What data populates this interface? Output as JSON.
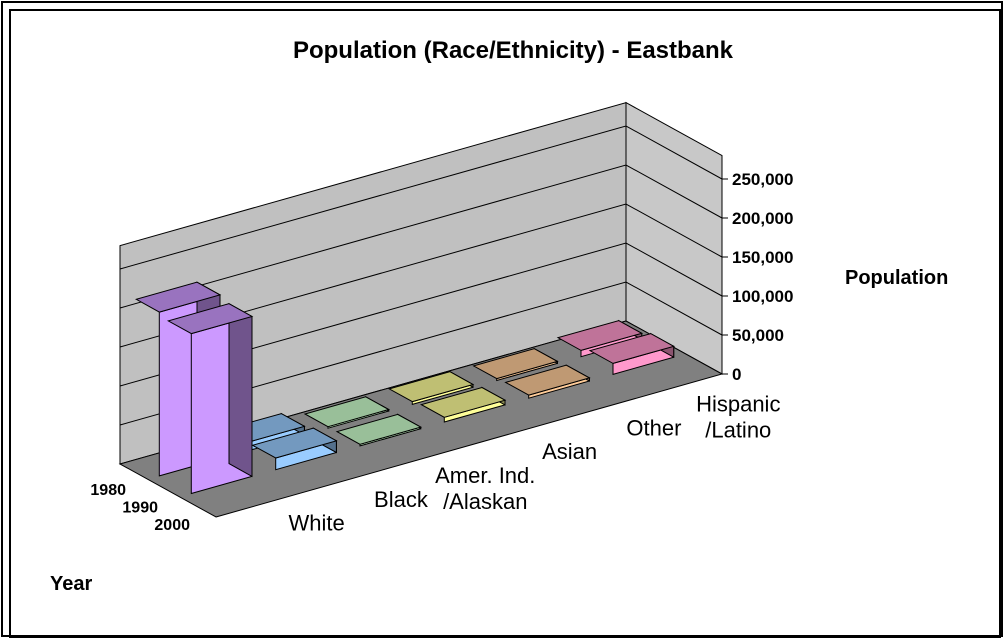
{
  "chart_data": {
    "type": "bar",
    "subtype": "3d-column",
    "title": "Population (Race/Ethnicity) - Eastbank",
    "xlabel": "",
    "ylabel": "Population",
    "depth_label": "Year",
    "categories": [
      "White",
      "Black",
      "Amer. Ind. /Alaskan",
      "Asian",
      "Other",
      "Hispanic /Latino"
    ],
    "category_lines": [
      [
        "White"
      ],
      [
        "Black"
      ],
      [
        "Amer. Ind.",
        "/Alaskan"
      ],
      [
        "Asian"
      ],
      [
        "Other"
      ],
      [
        "Hispanic",
        "/Latino"
      ]
    ],
    "years": [
      "1980",
      "1990",
      "2000"
    ],
    "series": [
      {
        "name": "1980",
        "values": [
          210000,
          11000,
          1500,
          3500,
          2500,
          8000
        ]
      },
      {
        "name": "1990",
        "values": [
          205000,
          15000,
          2000,
          6000,
          4000,
          14000
        ]
      },
      {
        "name": "2000",
        "values": [
          0,
          0,
          0,
          0,
          0,
          0
        ]
      }
    ],
    "y_ticks": [
      "0",
      "50,000",
      "100,000",
      "150,000",
      "200,000",
      "250,000"
    ],
    "ylim": [
      0,
      250000
    ],
    "colors": {
      "White": "#cc99ff",
      "Black": "#99ccff",
      "Amer. Ind. /Alaskan": "#ccffcc",
      "Asian": "#ffff99",
      "Other": "#ffcc99",
      "Hispanic /Latino": "#ff99cc",
      "wall": "#c0c0c0",
      "floor": "#808080"
    },
    "grid": true
  }
}
